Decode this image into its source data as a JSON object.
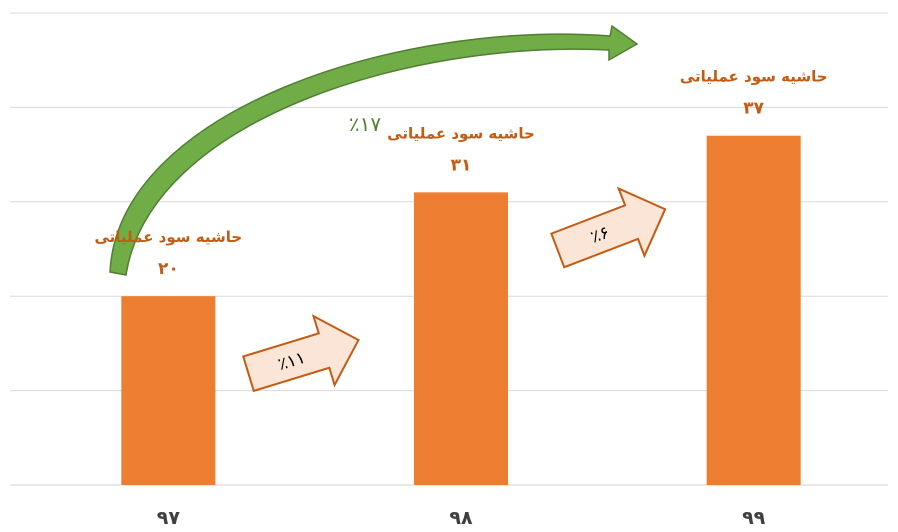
{
  "chart_data": {
    "type": "bar",
    "categories": [
      "۹۷",
      "۹۸",
      "۹۹"
    ],
    "values": [
      20,
      31,
      37
    ],
    "value_labels": [
      "۲۰",
      "۳۱",
      "۳۷"
    ],
    "data_label_prefix": "حاشیه سود عملیاتی",
    "ylim": [
      0,
      50
    ],
    "y_gridlines": [
      0,
      10,
      20,
      30,
      40,
      50
    ],
    "grid": true,
    "legend": "none",
    "colors": {
      "bar": "#ed7d31",
      "data_label": "#c55a11",
      "grid": "#d9d9d9",
      "growth_arrow_fill": "#fbe5d6",
      "growth_arrow_stroke": "#c55a11",
      "overall_arrow": "#70ad47",
      "overall_text": "#507e32"
    },
    "annotations": [
      {
        "type": "growth-arrow",
        "from": "۹۷",
        "to": "۹۸",
        "text": "٪۱۱"
      },
      {
        "type": "growth-arrow",
        "from": "۹۸",
        "to": "۹۹",
        "text": "٪۶"
      },
      {
        "type": "overall-arrow",
        "from": "۹۷",
        "to": "۹۹",
        "text": "٪۱۷"
      }
    ]
  }
}
